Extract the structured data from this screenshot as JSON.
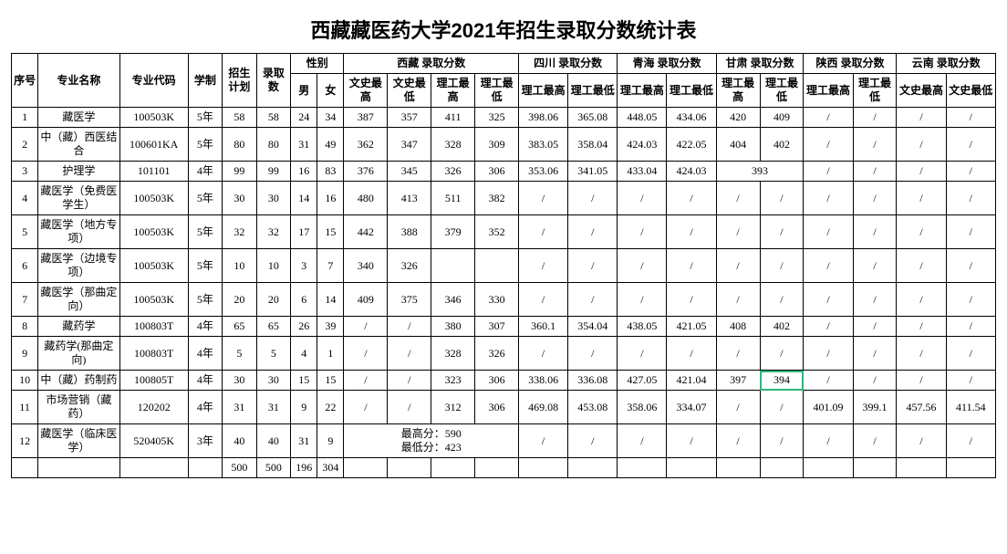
{
  "title": "西藏藏医药大学2021年招生录取分数统计表",
  "headers": {
    "xh": "序号",
    "major": "专业名称",
    "code": "专业代码",
    "xz": "学制",
    "plan": "招生计划",
    "adm": "录取数",
    "sex": "性别",
    "male": "男",
    "female": "女",
    "regions": {
      "xizang": "西藏\n录取分数",
      "sichuan": "四川\n录取分数",
      "qinghai": "青海\n录取分数",
      "gansu": "甘肃\n录取分数",
      "shaanxi": "陕西\n录取分数",
      "yunnan": "云南\n录取分数"
    },
    "sub": {
      "ws_hi": "文史最高",
      "ws_lo": "文史最低",
      "lg_hi": "理工最高",
      "lg_lo": "理工最低",
      "lg_lo2": "理工最低"
    }
  },
  "rows": [
    {
      "n": 1,
      "name": "藏医学",
      "code": "100503K",
      "xz": "5年",
      "plan": 58,
      "adm": 58,
      "m": 24,
      "f": 34,
      "xz_ws_hi": "387",
      "xz_ws_lo": "357",
      "xz_lg_hi": "411",
      "xz_lg_lo": "325",
      "sc_hi": "398.06",
      "sc_lo": "365.08",
      "qh_hi": "448.05",
      "qh_lo": "434.06",
      "gs_hi": "420",
      "gs_lo": "409",
      "sx_hi": "/",
      "sx_lo": "/",
      "yn_hi": "/",
      "yn_lo": "/"
    },
    {
      "n": 2,
      "name": "中（藏）西医结合",
      "code": "100601KA",
      "xz": "5年",
      "plan": 80,
      "adm": 80,
      "m": 31,
      "f": 49,
      "xz_ws_hi": "362",
      "xz_ws_lo": "347",
      "xz_lg_hi": "328",
      "xz_lg_lo": "309",
      "sc_hi": "383.05",
      "sc_lo": "358.04",
      "qh_hi": "424.03",
      "qh_lo": "422.05",
      "gs_hi": "404",
      "gs_lo": "402",
      "sx_hi": "/",
      "sx_lo": "/",
      "yn_hi": "/",
      "yn_lo": "/"
    },
    {
      "n": 3,
      "name": "护理学",
      "code": "101101",
      "xz": "4年",
      "plan": 99,
      "adm": 99,
      "m": 16,
      "f": 83,
      "xz_ws_hi": "376",
      "xz_ws_lo": "345",
      "xz_lg_hi": "326",
      "xz_lg_lo": "306",
      "sc_hi": "353.06",
      "sc_lo": "341.05",
      "qh_hi": "433.04",
      "qh_lo": "424.03",
      "gs_merged": "393",
      "sx_hi": "/",
      "sx_lo": "/",
      "yn_hi": "/",
      "yn_lo": "/"
    },
    {
      "n": 4,
      "name": "藏医学（免费医学生）",
      "code": "100503K",
      "xz": "5年",
      "plan": 30,
      "adm": 30,
      "m": 14,
      "f": 16,
      "xz_ws_hi": "480",
      "xz_ws_lo": "413",
      "xz_lg_hi": "511",
      "xz_lg_lo": "382",
      "sc_hi": "/",
      "sc_lo": "/",
      "qh_hi": "/",
      "qh_lo": "/",
      "gs_hi": "/",
      "gs_lo": "/",
      "sx_hi": "/",
      "sx_lo": "/",
      "yn_hi": "/",
      "yn_lo": "/"
    },
    {
      "n": 5,
      "name": "藏医学（地方专项）",
      "code": "100503K",
      "xz": "5年",
      "plan": 32,
      "adm": 32,
      "m": 17,
      "f": 15,
      "xz_ws_hi": "442",
      "xz_ws_lo": "388",
      "xz_lg_hi": "379",
      "xz_lg_lo": "352",
      "sc_hi": "/",
      "sc_lo": "/",
      "qh_hi": "/",
      "qh_lo": "/",
      "gs_hi": "/",
      "gs_lo": "/",
      "sx_hi": "/",
      "sx_lo": "/",
      "yn_hi": "/",
      "yn_lo": "/"
    },
    {
      "n": 6,
      "name": "藏医学（边境专项）",
      "code": "100503K",
      "xz": "5年",
      "plan": 10,
      "adm": 10,
      "m": 3,
      "f": 7,
      "xz_ws_hi": "340",
      "xz_ws_lo": "326",
      "xz_lg_hi": "",
      "xz_lg_lo": "",
      "sc_hi": "/",
      "sc_lo": "/",
      "qh_hi": "/",
      "qh_lo": "/",
      "gs_hi": "/",
      "gs_lo": "/",
      "sx_hi": "/",
      "sx_lo": "/",
      "yn_hi": "/",
      "yn_lo": "/"
    },
    {
      "n": 7,
      "name": "藏医学（那曲定向）",
      "code": "100503K",
      "xz": "5年",
      "plan": 20,
      "adm": 20,
      "m": 6,
      "f": 14,
      "xz_ws_hi": "409",
      "xz_ws_lo": "375",
      "xz_lg_hi": "346",
      "xz_lg_lo": "330",
      "sc_hi": "/",
      "sc_lo": "/",
      "qh_hi": "/",
      "qh_lo": "/",
      "gs_hi": "/",
      "gs_lo": "/",
      "sx_hi": "/",
      "sx_lo": "/",
      "yn_hi": "/",
      "yn_lo": "/"
    },
    {
      "n": 8,
      "name": "藏药学",
      "code": "100803T",
      "xz": "4年",
      "plan": 65,
      "adm": 65,
      "m": 26,
      "f": 39,
      "xz_ws_hi": "/",
      "xz_ws_lo": "/",
      "xz_lg_hi": "380",
      "xz_lg_lo": "307",
      "sc_hi": "360.1",
      "sc_lo": "354.04",
      "qh_hi": "438.05",
      "qh_lo": "421.05",
      "gs_hi": "408",
      "gs_lo": "402",
      "sx_hi": "/",
      "sx_lo": "/",
      "yn_hi": "/",
      "yn_lo": "/"
    },
    {
      "n": 9,
      "name": "藏药学(那曲定向)",
      "code": "100803T",
      "xz": "4年",
      "plan": 5,
      "adm": 5,
      "m": 4,
      "f": 1,
      "xz_ws_hi": "/",
      "xz_ws_lo": "/",
      "xz_lg_hi": "328",
      "xz_lg_lo": "326",
      "sc_hi": "/",
      "sc_lo": "/",
      "qh_hi": "/",
      "qh_lo": "/",
      "gs_hi": "/",
      "gs_lo": "/",
      "sx_hi": "/",
      "sx_lo": "/",
      "yn_hi": "/",
      "yn_lo": "/"
    },
    {
      "n": 10,
      "name": "中（藏）药制药",
      "code": "100805T",
      "xz": "4年",
      "plan": 30,
      "adm": 30,
      "m": 15,
      "f": 15,
      "xz_ws_hi": "/",
      "xz_ws_lo": "/",
      "xz_lg_hi": "323",
      "xz_lg_lo": "306",
      "sc_hi": "338.06",
      "sc_lo": "336.08",
      "qh_hi": "427.05",
      "qh_lo": "421.04",
      "gs_hi": "397",
      "gs_lo": "394",
      "sx_hi": "/",
      "sx_lo": "/",
      "yn_hi": "/",
      "yn_lo": "/",
      "hl_gs_lo": true
    },
    {
      "n": 11,
      "name": "市场营销（藏药）",
      "code": "120202",
      "xz": "4年",
      "plan": 31,
      "adm": 31,
      "m": 9,
      "f": 22,
      "xz_ws_hi": "/",
      "xz_ws_lo": "/",
      "xz_lg_hi": "312",
      "xz_lg_lo": "306",
      "sc_hi": "469.08",
      "sc_lo": "453.08",
      "qh_hi": "358.06",
      "qh_lo": "334.07",
      "gs_hi": "/",
      "gs_lo": "/",
      "sx_hi": "401.09",
      "sx_lo": "399.1",
      "yn_hi": "457.56",
      "yn_lo": "411.54"
    },
    {
      "n": 12,
      "name": "藏医学（临床医学）",
      "code": "520405K",
      "xz": "3年",
      "plan": 40,
      "adm": 40,
      "m": 31,
      "f": 9,
      "xz_merged": "最高分：590\n最低分：423",
      "sc_hi": "/",
      "sc_lo": "/",
      "qh_hi": "/",
      "qh_lo": "/",
      "gs_hi": "/",
      "gs_lo": "/",
      "sx_hi": "/",
      "sx_lo": "/",
      "yn_hi": "/",
      "yn_lo": "/"
    }
  ],
  "totals": {
    "plan": 500,
    "adm": 500,
    "m": 196,
    "f": 304
  }
}
